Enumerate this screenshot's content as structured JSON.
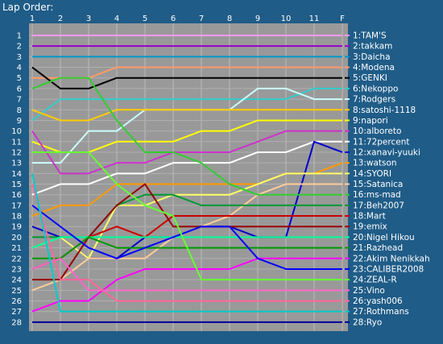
{
  "chart_data": {
    "type": "line",
    "title": "Lap Order:",
    "x_labels": [
      "1",
      "2",
      "3",
      "4",
      "5",
      "6",
      "7",
      "8",
      "9",
      "10",
      "11",
      "F"
    ],
    "y_labels": [
      "1",
      "2",
      "3",
      "4",
      "5",
      "6",
      "7",
      "8",
      "9",
      "10",
      "11",
      "12",
      "13",
      "14",
      "15",
      "16",
      "17",
      "18",
      "19",
      "20",
      "21",
      "22",
      "23",
      "24",
      "25",
      "26",
      "27",
      "28"
    ],
    "ylim": [
      1,
      28
    ],
    "grid": true,
    "legend_position": "right",
    "series": [
      {
        "name": "1:TAM'S",
        "color": "#ff99ff",
        "values": [
          1,
          1,
          1,
          1,
          1,
          1,
          1,
          1,
          1,
          1,
          1,
          1
        ]
      },
      {
        "name": "2:takkam",
        "color": "#9900cc",
        "values": [
          2,
          2,
          2,
          2,
          2,
          2,
          2,
          2,
          2,
          2,
          2,
          2
        ]
      },
      {
        "name": "3:Daicha",
        "color": "#0099cc",
        "values": [
          3,
          3,
          3,
          3,
          3,
          3,
          3,
          3,
          3,
          3,
          3,
          3
        ]
      },
      {
        "name": "4:Modena",
        "color": "#ff9966",
        "values": [
          5,
          5,
          5,
          4,
          4,
          4,
          4,
          4,
          4,
          4,
          4,
          4
        ]
      },
      {
        "name": "5:GENKI",
        "color": "#000000",
        "values": [
          4,
          6,
          6,
          5,
          5,
          5,
          5,
          5,
          5,
          5,
          5,
          5
        ]
      },
      {
        "name": "6:Nekoppo",
        "color": "#33cccc",
        "values": [
          9,
          7,
          7,
          7,
          7,
          7,
          7,
          7,
          7,
          7,
          6,
          6
        ]
      },
      {
        "name": "7:Rodgers",
        "color": "#ccffff",
        "values": [
          13,
          13,
          10,
          10,
          8,
          8,
          8,
          8,
          6,
          6,
          7,
          7
        ]
      },
      {
        "name": "8:satoshi-1118",
        "color": "#ffcc00",
        "values": [
          8,
          9,
          9,
          8,
          8,
          8,
          8,
          8,
          8,
          8,
          8,
          8
        ]
      },
      {
        "name": "9:napori",
        "color": "#ffff00",
        "values": [
          11,
          12,
          12,
          11,
          11,
          11,
          10,
          10,
          9,
          9,
          9,
          9
        ]
      },
      {
        "name": "10:alboreto",
        "color": "#cc33cc",
        "values": [
          10,
          14,
          14,
          13,
          13,
          12,
          12,
          12,
          11,
          10,
          10,
          10
        ]
      },
      {
        "name": "11:72percent",
        "color": "#ffffff",
        "values": [
          16,
          15,
          15,
          14,
          14,
          13,
          13,
          13,
          12,
          12,
          11,
          11
        ]
      },
      {
        "name": "12:xanavi-yuuki",
        "color": "#0000cc",
        "values": [
          19,
          20,
          22,
          22,
          20,
          20,
          19,
          19,
          20,
          20,
          11,
          12
        ]
      },
      {
        "name": "13:watson",
        "color": "#ff9900",
        "values": [
          18,
          17,
          17,
          15,
          15,
          15,
          15,
          15,
          15,
          14,
          14,
          13
        ]
      },
      {
        "name": "14:SYORI",
        "color": "#ffff66",
        "values": [
          21,
          20,
          22,
          17,
          17,
          16,
          16,
          16,
          15,
          14,
          14,
          14
        ]
      },
      {
        "name": "15:Satanica",
        "color": "#ffcc99",
        "values": [
          25,
          24,
          22,
          22,
          22,
          20,
          19,
          18,
          16,
          15,
          15,
          15
        ]
      },
      {
        "name": "16:ms-mad",
        "color": "#33cc33",
        "values": [
          6,
          5,
          5,
          9,
          12,
          12,
          13,
          15,
          16,
          16,
          16,
          16
        ]
      },
      {
        "name": "17:Beh2007",
        "color": "#009933",
        "values": [
          20,
          20,
          20,
          17,
          16,
          16,
          17,
          17,
          17,
          17,
          17,
          17
        ]
      },
      {
        "name": "18:Mart",
        "color": "#cc0000",
        "values": [
          23,
          22,
          20,
          19,
          20,
          18,
          18,
          18,
          18,
          18,
          18,
          18
        ]
      },
      {
        "name": "19:emix",
        "color": "#990000",
        "values": [
          24,
          24,
          20,
          17,
          15,
          19,
          19,
          19,
          19,
          19,
          19,
          19
        ]
      },
      {
        "name": "20:Nigel Hikou",
        "color": "#00ff99",
        "values": [
          21,
          20,
          20,
          20,
          20,
          20,
          20,
          20,
          20,
          20,
          20,
          20
        ]
      },
      {
        "name": "21:Razhead",
        "color": "#009900",
        "values": [
          22,
          22,
          20,
          21,
          21,
          21,
          21,
          21,
          21,
          21,
          21,
          21
        ]
      },
      {
        "name": "22:Akim Nenikkah",
        "color": "#ff00ff",
        "values": [
          27,
          26,
          26,
          24,
          23,
          23,
          23,
          23,
          22,
          22,
          22,
          22
        ]
      },
      {
        "name": "23:CALIBER2008",
        "color": "#0000ff",
        "values": [
          17,
          19,
          21,
          22,
          21,
          20,
          19,
          19,
          22,
          23,
          23,
          23
        ]
      },
      {
        "name": "24:ZEAL-R",
        "color": "#66ff33",
        "values": [
          12,
          12,
          12,
          15,
          17,
          18,
          24,
          24,
          24,
          24,
          24,
          24
        ]
      },
      {
        "name": "25:Vino",
        "color": "#ff66cc",
        "values": [
          23,
          22,
          25,
          25,
          25,
          25,
          25,
          25,
          25,
          25,
          25,
          25
        ]
      },
      {
        "name": "26:yash006",
        "color": "#ff6699",
        "values": [
          15,
          24,
          24,
          26,
          26,
          26,
          26,
          26,
          26,
          26,
          26,
          26
        ]
      },
      {
        "name": "27:Rothmans",
        "color": "#00cccc",
        "values": [
          14,
          27,
          27,
          27,
          27,
          27,
          27,
          27,
          27,
          27,
          27,
          27
        ]
      },
      {
        "name": "28:Ryo",
        "color": "#000099",
        "values": [
          28,
          28,
          28,
          28,
          28,
          28,
          28,
          28,
          28,
          28,
          28,
          28
        ]
      }
    ]
  }
}
